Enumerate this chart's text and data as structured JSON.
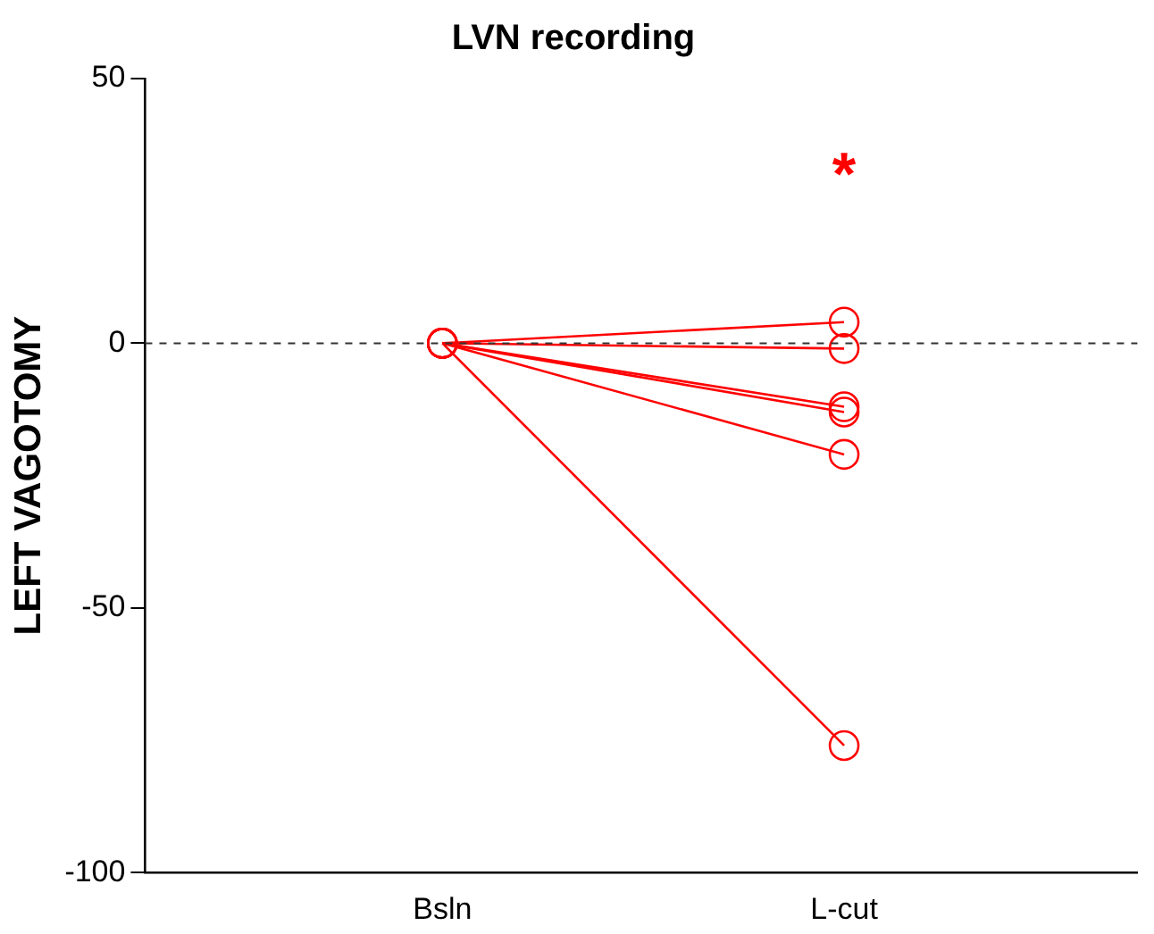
{
  "chart_data": {
    "type": "line",
    "title": "LVN recording",
    "ylabel": "LEFT VAGOTOMY",
    "categories": [
      "Bsln",
      "L-cut"
    ],
    "series": [
      {
        "color": "#ff0000",
        "values": [
          0,
          4
        ]
      },
      {
        "color": "#ff0000",
        "values": [
          0,
          -1
        ]
      },
      {
        "color": "#ff0000",
        "values": [
          0,
          -12
        ]
      },
      {
        "color": "#ff0000",
        "values": [
          0,
          -13
        ]
      },
      {
        "color": "#ff0000",
        "values": [
          0,
          -21
        ]
      },
      {
        "color": "#ff0000",
        "values": [
          0,
          -76
        ]
      }
    ],
    "ylim": [
      -100,
      50
    ],
    "yticks": [
      -100,
      -50,
      0,
      50
    ],
    "grid": false,
    "legend": false,
    "marker": "circle",
    "line_style": "solid",
    "ref_lines": [
      {
        "axis": "y",
        "value": 0,
        "color": "#333333",
        "line_style": "dashed"
      }
    ],
    "annotations": [
      "*"
    ]
  }
}
